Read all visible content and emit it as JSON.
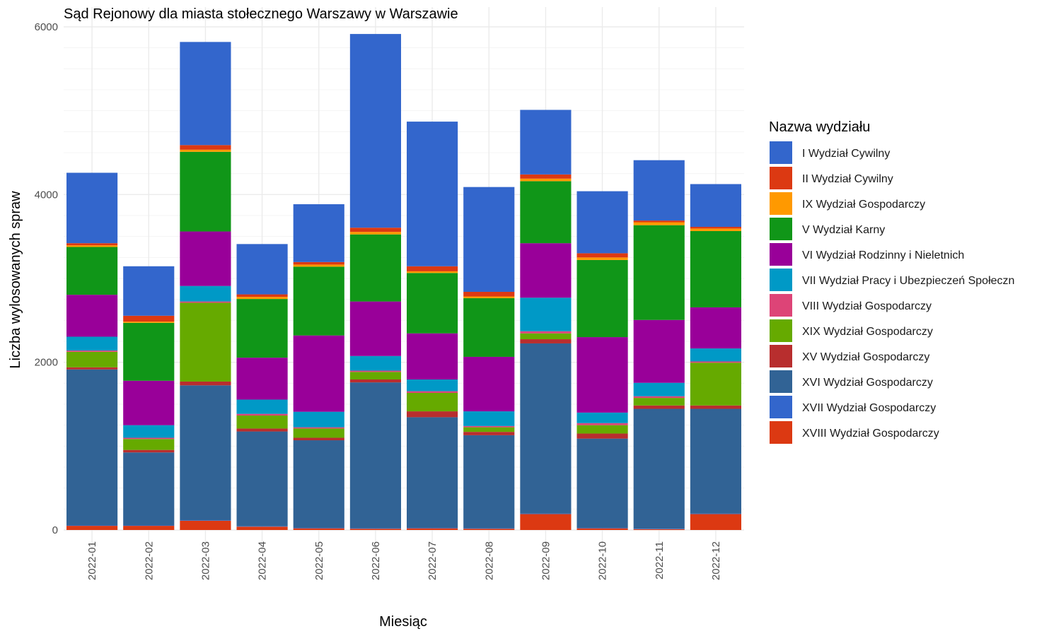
{
  "chart_data": {
    "type": "bar",
    "stacked": true,
    "title": "Sąd Rejonowy dla miasta stołecznego Warszawy w Warszawie",
    "xlabel": "Miesiąc",
    "ylabel": "Liczba wylosowanych spraw",
    "ylim": [
      0,
      6000
    ],
    "yticks": [
      0,
      2000,
      4000,
      6000
    ],
    "grid": true,
    "legend_title": "Nazwa wydziału",
    "legend_position": "right",
    "categories": [
      "2022-01",
      "2022-02",
      "2022-03",
      "2022-04",
      "2022-05",
      "2022-06",
      "2022-07",
      "2022-08",
      "2022-09",
      "2022-10",
      "2022-11",
      "2022-12"
    ],
    "series": [
      {
        "name": "XVIII Wydział Gospodarczy",
        "color": "#DC3912",
        "values": [
          50,
          50,
          110,
          40,
          20,
          15,
          20,
          15,
          190,
          20,
          10,
          190
        ]
      },
      {
        "name": "XVII Wydział Gospodarczy",
        "color": "#3366CC",
        "values": [
          5,
          5,
          5,
          5,
          5,
          5,
          5,
          5,
          5,
          5,
          5,
          5
        ]
      },
      {
        "name": "XVI Wydział Gospodarczy",
        "color": "#316395",
        "values": [
          1860,
          870,
          1610,
          1130,
          1045,
          1740,
          1320,
          1110,
          2030,
          1065,
          1430,
          1250
        ]
      },
      {
        "name": "XV Wydział Gospodarczy",
        "color": "#B82E2E",
        "values": [
          25,
          30,
          45,
          35,
          30,
          35,
          70,
          40,
          50,
          60,
          40,
          40
        ]
      },
      {
        "name": "XIX Wydział Gospodarczy",
        "color": "#66AA00",
        "values": [
          185,
          130,
          940,
          155,
          110,
          90,
          220,
          55,
          70,
          100,
          90,
          510
        ]
      },
      {
        "name": "VIII Wydział Gospodarczy",
        "color": "#DD4477",
        "values": [
          15,
          15,
          15,
          20,
          15,
          15,
          20,
          15,
          25,
          25,
          20,
          15
        ]
      },
      {
        "name": "VII Wydział Pracy i Ubezpieczeń Społeczn",
        "color": "#0099C6",
        "values": [
          165,
          150,
          185,
          170,
          185,
          175,
          140,
          175,
          400,
          125,
          160,
          155
        ]
      },
      {
        "name": "VI Wydział Rodzinny i Nieletnich",
        "color": "#990099",
        "values": [
          500,
          530,
          650,
          500,
          910,
          650,
          550,
          650,
          650,
          900,
          750,
          490
        ]
      },
      {
        "name": "V Wydział Karny",
        "color": "#109618",
        "values": [
          570,
          690,
          950,
          700,
          820,
          800,
          720,
          700,
          740,
          920,
          1130,
          910
        ]
      },
      {
        "name": "IX Wydział Gospodarczy",
        "color": "#FF9900",
        "values": [
          20,
          15,
          25,
          25,
          25,
          30,
          20,
          20,
          30,
          30,
          35,
          30
        ]
      },
      {
        "name": "II Wydział Cywilny",
        "color": "#DC3912",
        "values": [
          25,
          70,
          55,
          30,
          30,
          50,
          60,
          55,
          50,
          50,
          20,
          20
        ]
      },
      {
        "name": "I Wydział Cywilny",
        "color": "#3366CC",
        "values": [
          840,
          590,
          1230,
          600,
          690,
          2310,
          1725,
          1250,
          770,
          740,
          720,
          510
        ]
      }
    ],
    "legend_order": [
      "I Wydział Cywilny",
      "II Wydział Cywilny",
      "IX Wydział Gospodarczy",
      "V Wydział Karny",
      "VI Wydział Rodzinny i Nieletnich",
      "VII Wydział Pracy i Ubezpieczeń Społeczn",
      "VIII Wydział Gospodarczy",
      "XIX Wydział Gospodarczy",
      "XV Wydział Gospodarczy",
      "XVI Wydział Gospodarczy",
      "XVII Wydział Gospodarczy",
      "XVIII Wydział Gospodarczy"
    ]
  }
}
